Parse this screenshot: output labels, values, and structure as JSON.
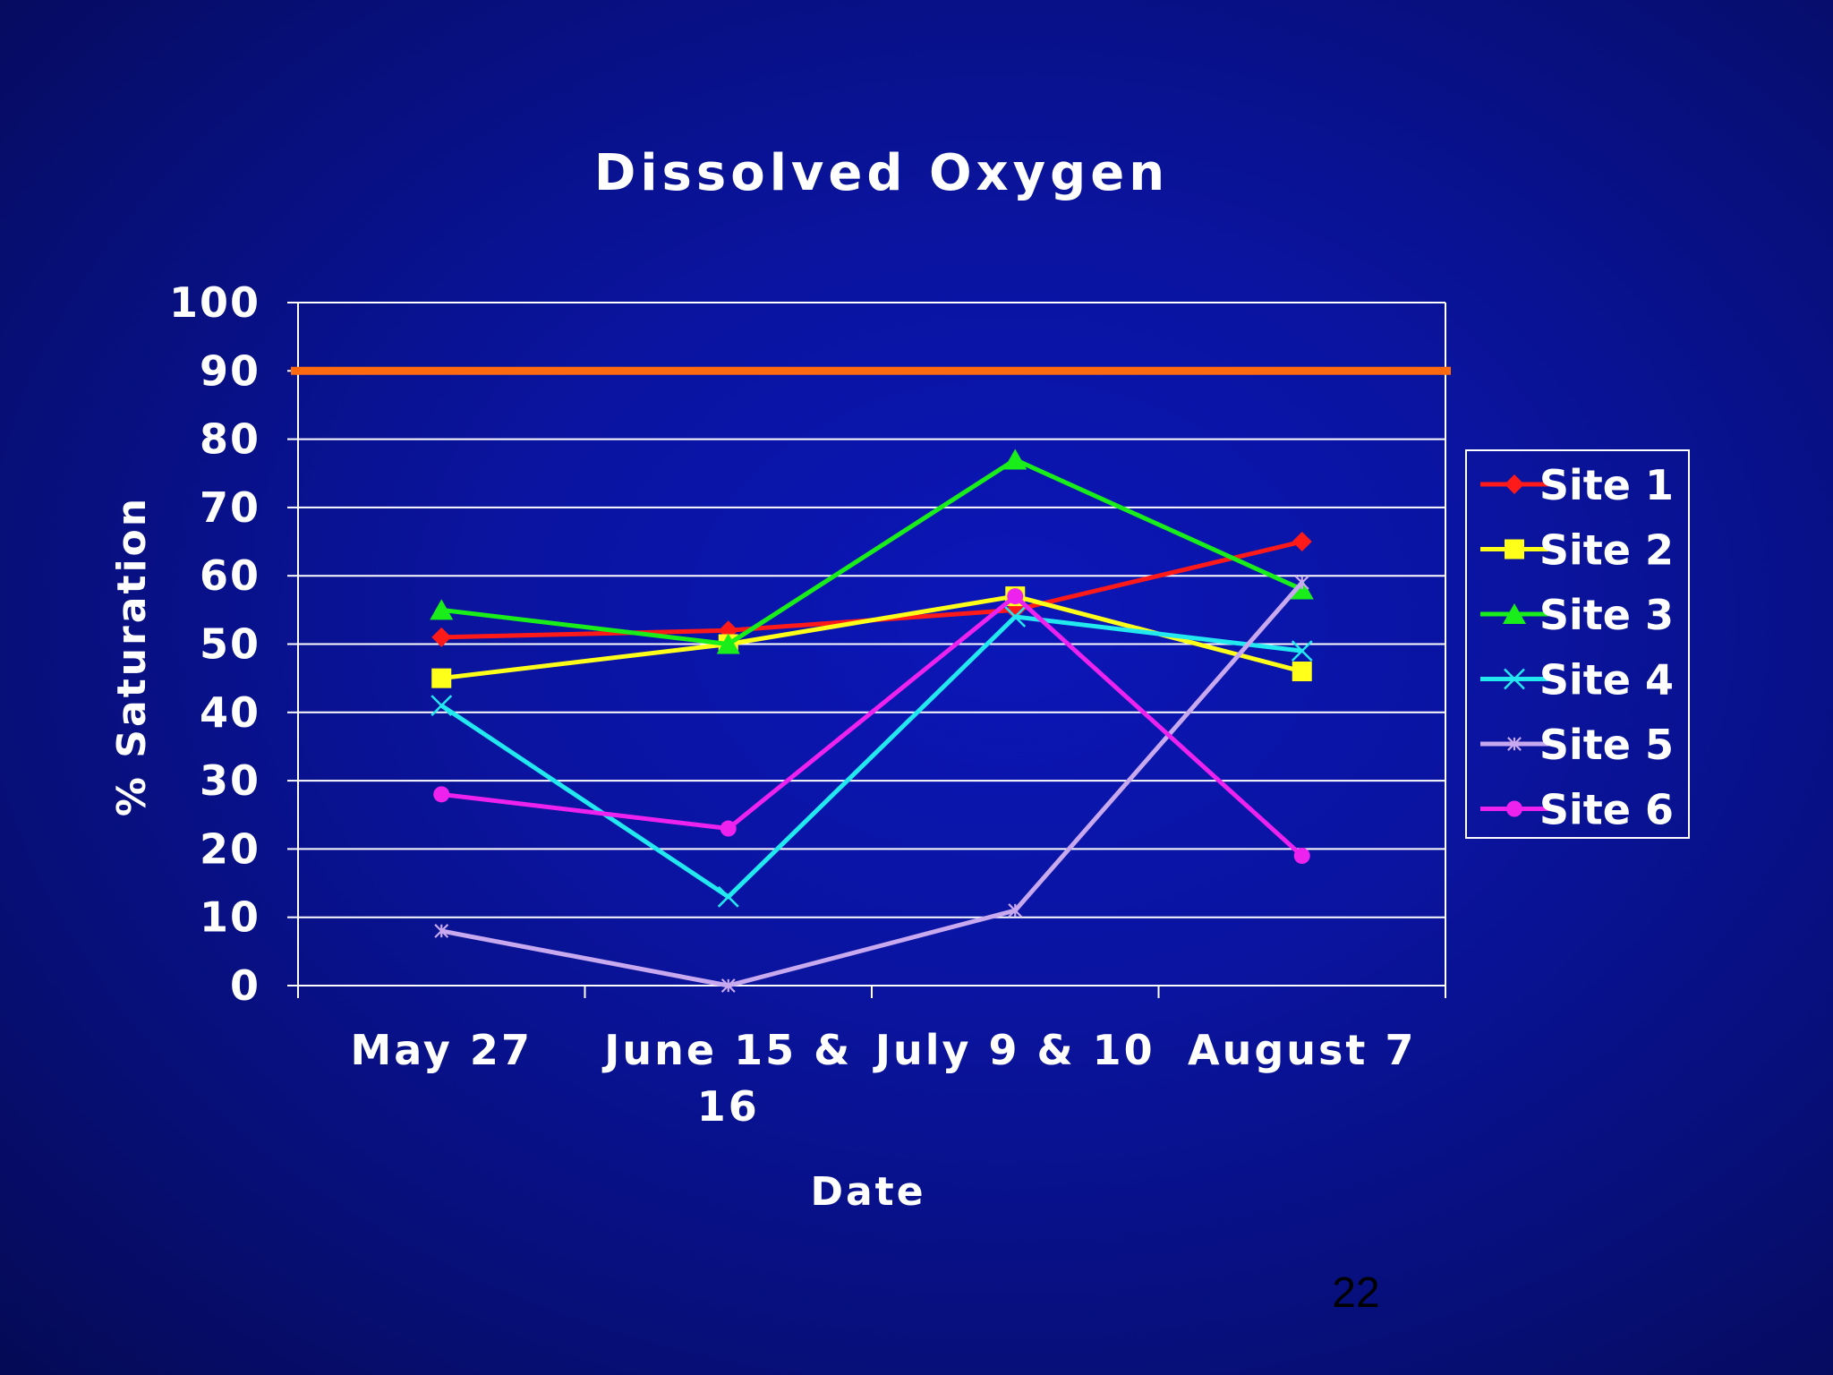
{
  "slide": {
    "page_number": "22"
  },
  "colors": {
    "grid": "#ffffff",
    "reference_line": "#ff6a10",
    "text": "#ffffff",
    "background": "#0a14a0"
  },
  "chart_data": {
    "type": "line",
    "title": "Dissolved Oxygen",
    "xlabel": "Date",
    "ylabel": "% Saturation",
    "ylim": [
      0,
      100
    ],
    "yticks": [
      0,
      10,
      20,
      30,
      40,
      50,
      60,
      70,
      80,
      90,
      100
    ],
    "categories": [
      "May 27",
      "June 15 & 16",
      "July 9 & 10",
      "August 7"
    ],
    "category_lines": [
      [
        "May 27"
      ],
      [
        "June 15 &",
        "16"
      ],
      [
        "July 9 & 10"
      ],
      [
        "August 7"
      ]
    ],
    "grid": true,
    "legend_position": "right",
    "reference_line": {
      "value": 90,
      "color": "#ff6a10"
    },
    "series": [
      {
        "name": "Site 1",
        "color": "#ff1a1a",
        "marker": "diamond",
        "values": [
          51,
          52,
          55,
          65
        ]
      },
      {
        "name": "Site 2",
        "color": "#ffff1a",
        "marker": "square",
        "values": [
          45,
          50,
          57,
          46
        ]
      },
      {
        "name": "Site 3",
        "color": "#1aee1a",
        "marker": "triangle",
        "values": [
          55,
          50,
          77,
          58
        ]
      },
      {
        "name": "Site 4",
        "color": "#22e8f0",
        "marker": "x",
        "values": [
          41,
          13,
          54,
          49
        ]
      },
      {
        "name": "Site 5",
        "color": "#c8a8ee",
        "marker": "star",
        "values": [
          8,
          0,
          11,
          59
        ]
      },
      {
        "name": "Site 6",
        "color": "#ee22ee",
        "marker": "circle",
        "values": [
          28,
          23,
          57,
          19
        ]
      }
    ]
  }
}
